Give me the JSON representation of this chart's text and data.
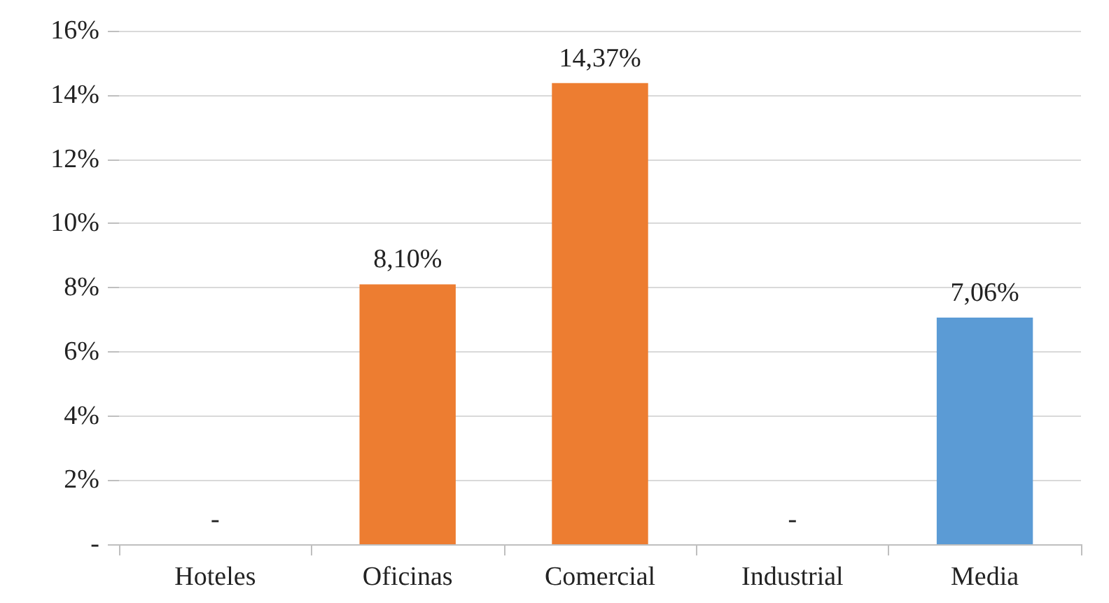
{
  "chart_data": {
    "type": "bar",
    "categories": [
      "Hoteles",
      "Oficinas",
      "Comercial",
      "Industrial",
      "Media"
    ],
    "values": [
      0,
      8.1,
      14.37,
      0,
      7.06
    ],
    "colors": [
      "#ed7d31",
      "#ed7d31",
      "#ed7d31",
      "#ed7d31",
      "#5b9bd5"
    ],
    "value_labels": [
      "-",
      "8,10%",
      "14,37%",
      "-",
      "7,06%"
    ],
    "ylim": [
      0,
      16
    ],
    "yticks": [
      {
        "value": 0,
        "label": "-"
      },
      {
        "value": 2,
        "label": "2%"
      },
      {
        "value": 4,
        "label": "4%"
      },
      {
        "value": 6,
        "label": "6%"
      },
      {
        "value": 8,
        "label": "8%"
      },
      {
        "value": 10,
        "label": "10%"
      },
      {
        "value": 12,
        "label": "12%"
      },
      {
        "value": 14,
        "label": "14%"
      },
      {
        "value": 16,
        "label": "16%"
      }
    ],
    "grid": "y"
  }
}
